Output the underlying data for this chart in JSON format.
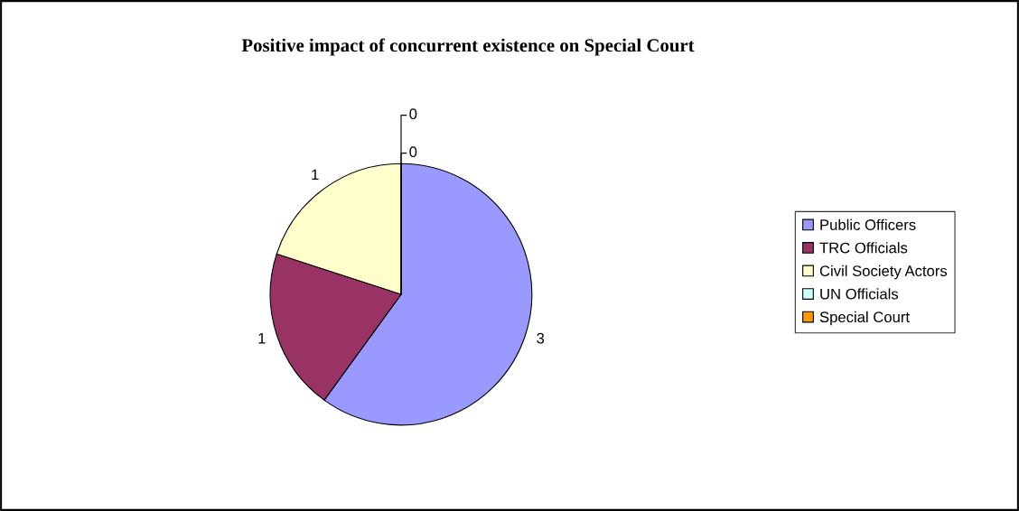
{
  "chart_data": {
    "type": "pie",
    "title": "Positive impact of concurrent existence on Special Court",
    "categories": [
      "Public Officers",
      "TRC Officials",
      "Civil Society Actors",
      "UN Officials",
      "Special Court"
    ],
    "values": [
      3,
      1,
      1,
      0,
      0
    ],
    "colors": [
      "#9999ff",
      "#993366",
      "#ffffcc",
      "#ccffff",
      "#ff9900"
    ],
    "value_labels": [
      "3",
      "1",
      "1",
      "0",
      "0"
    ],
    "legend": "right"
  }
}
